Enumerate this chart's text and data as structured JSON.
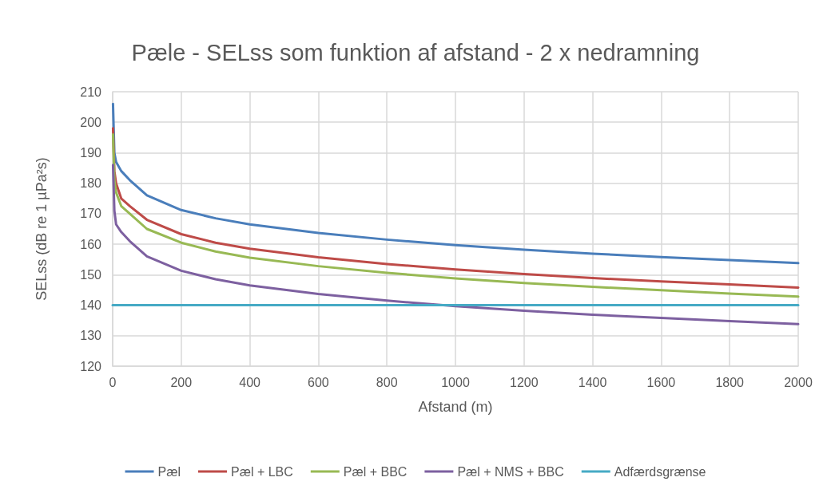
{
  "chart_data": {
    "type": "line",
    "title": "Pæle - SELss som funktion af afstand - 2 x nedramning",
    "xlabel": "Afstand (m)",
    "ylabel": "SELss (dB re 1 µPa²s)",
    "x": [
      1,
      5,
      10,
      25,
      50,
      100,
      200,
      300,
      400,
      600,
      800,
      1000,
      1200,
      1400,
      1600,
      1800,
      2000
    ],
    "series": [
      {
        "name": "Pæl",
        "color": "#4a7ebb",
        "values": [
          206,
          190,
          187,
          184,
          181,
          176,
          171.2,
          168.5,
          166.5,
          163.7,
          161.5,
          159.7,
          158.2,
          156.9,
          155.8,
          154.8,
          153.8
        ]
      },
      {
        "name": "Pæl + LBC",
        "color": "#be4b48",
        "values": [
          198,
          184,
          180,
          175,
          172.5,
          168,
          163.3,
          160.5,
          158.5,
          155.7,
          153.5,
          151.7,
          150.2,
          148.9,
          147.8,
          146.8,
          145.8
        ]
      },
      {
        "name": "Pæl + BBC",
        "color": "#98b954",
        "values": [
          196,
          181,
          177,
          172.5,
          170,
          165,
          160.5,
          157.6,
          155.6,
          152.8,
          150.6,
          148.8,
          147.3,
          146,
          144.9,
          143.8,
          142.8
        ]
      },
      {
        "name": "Pæl + NMS + BBC",
        "color": "#7d60a0",
        "values": [
          186,
          171,
          166.5,
          164,
          161,
          156,
          151.3,
          148.5,
          146.5,
          143.7,
          141.5,
          139.7,
          138.2,
          136.9,
          135.8,
          134.8,
          133.8
        ]
      },
      {
        "name": "Adfærdsgrænse",
        "color": "#46aac5",
        "x": [
          0,
          2000
        ],
        "values": [
          140,
          140
        ]
      }
    ],
    "xlim": [
      0,
      2000
    ],
    "xticks": [
      0,
      200,
      400,
      600,
      800,
      1000,
      1200,
      1400,
      1600,
      1800,
      2000
    ],
    "ylim": [
      120,
      210
    ],
    "yticks": [
      120,
      130,
      140,
      150,
      160,
      170,
      180,
      190,
      200,
      210
    ],
    "grid": true,
    "legend": "bottom",
    "marker": "none",
    "line_style": "solid"
  }
}
